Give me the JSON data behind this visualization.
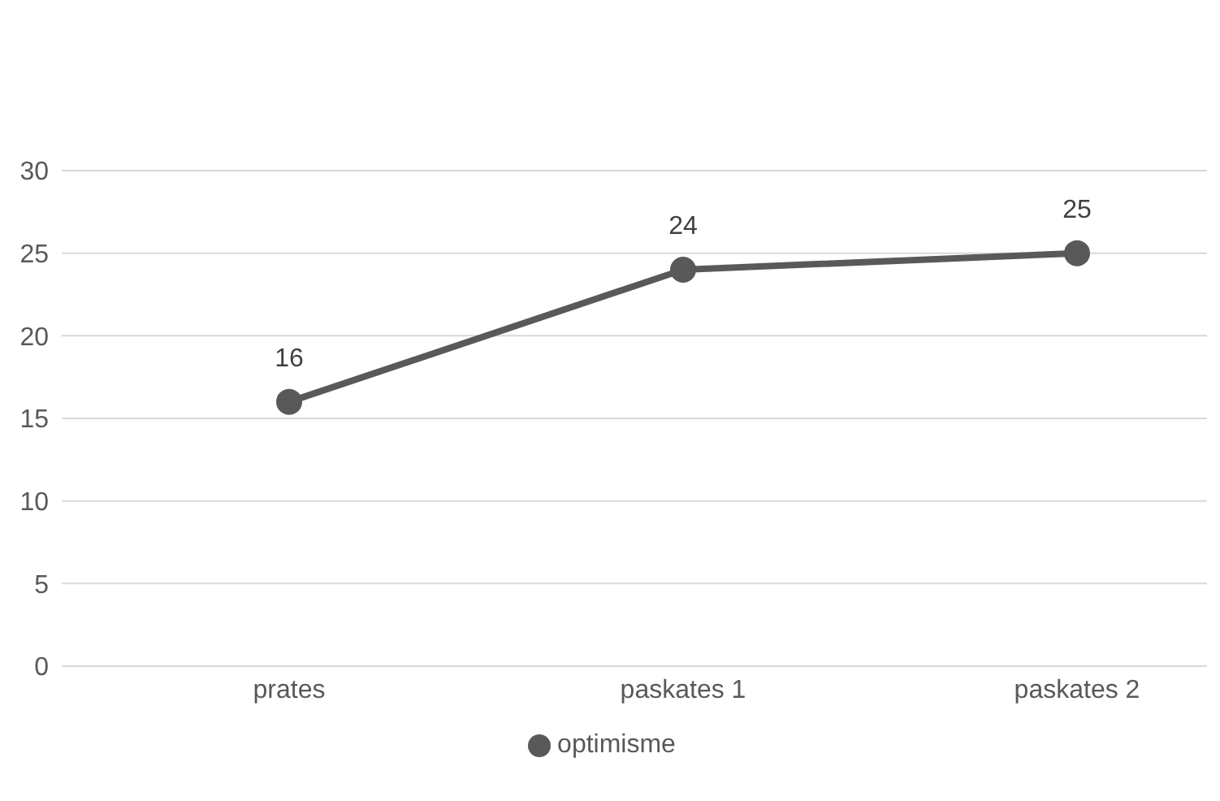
{
  "chart_data": {
    "type": "line",
    "categories": [
      "prates",
      "paskates 1",
      "paskates 2"
    ],
    "series": [
      {
        "name": "optimisme",
        "color": "#595959",
        "values": [
          16,
          24,
          25
        ]
      }
    ],
    "ylim": [
      0,
      30
    ],
    "yticks": [
      0,
      5,
      10,
      15,
      20,
      25,
      30
    ],
    "grid": "y",
    "legend": "bottom",
    "marker": "circle",
    "line_style": "solid",
    "data_labels": true
  }
}
